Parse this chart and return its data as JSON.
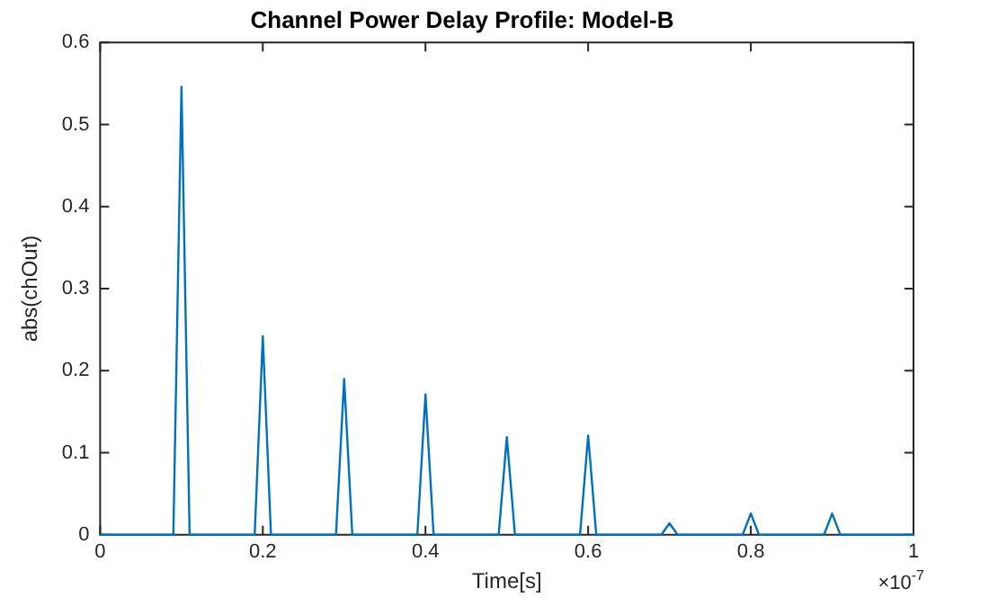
{
  "chart_data": {
    "type": "line",
    "title": "Channel Power Delay Profile: Model-B",
    "xlabel": "Time[s]",
    "ylabel": "abs(chOut)",
    "x": [
      0,
      0.09,
      0.1,
      0.11,
      0.19,
      0.2,
      0.21,
      0.29,
      0.3,
      0.31,
      0.39,
      0.4,
      0.41,
      0.49,
      0.5,
      0.51,
      0.59,
      0.6,
      0.61,
      0.69,
      0.7,
      0.71,
      0.79,
      0.8,
      0.81,
      0.89,
      0.9,
      0.91,
      1
    ],
    "series": [
      {
        "color": "#0072bd",
        "values": [
          0,
          0,
          0.546,
          0,
          0,
          0.242,
          0,
          0,
          0.19,
          0,
          0,
          0.171,
          0,
          0,
          0.119,
          0,
          0,
          0.121,
          0,
          0,
          0.014,
          0,
          0,
          0.026,
          0,
          0,
          0.026,
          0,
          0
        ]
      }
    ],
    "xlim": [
      0,
      1
    ],
    "xticks": [
      0,
      0.2,
      0.4,
      0.6,
      0.8,
      1
    ],
    "ylim": [
      0,
      0.6
    ],
    "yticks": [
      0,
      0.1,
      0.2,
      0.3,
      0.4,
      0.5,
      0.6
    ],
    "grid": false,
    "legend": false,
    "marker": "none",
    "line_style": "solid",
    "annotations": [
      "×10$^{-7}$"
    ]
  }
}
